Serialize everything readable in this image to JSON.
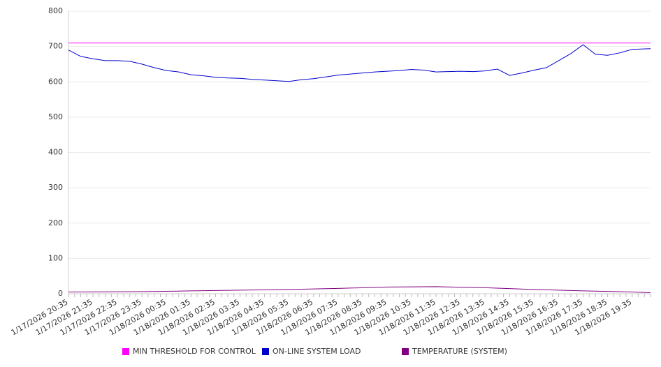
{
  "chart_data": {
    "type": "line",
    "ylim": [
      0,
      800
    ],
    "y_ticks": [
      0,
      100,
      200,
      300,
      400,
      500,
      600,
      700,
      800
    ],
    "x_tick_labels": [
      "1/17/2026 20:35",
      "1/17/2026 21:35",
      "1/17/2026 22:35",
      "1/17/2026 23:35",
      "1/18/2026 00:35",
      "1/18/2026 01:35",
      "1/18/2026 02:35",
      "1/18/2026 03:35",
      "1/18/2026 04:35",
      "1/18/2026 05:35",
      "1/18/2026 06:35",
      "1/18/2026 07:35",
      "1/18/2026 08:35",
      "1/18/2026 09:35",
      "1/18/2026 10:35",
      "1/18/2026 11:35",
      "1/18/2026 12:35",
      "1/18/2026 13:35",
      "1/18/2026 14:35",
      "1/18/2026 15:35",
      "1/18/2026 16:35",
      "1/18/2026 17:35",
      "1/18/2026 18:35",
      "1/18/2026 19:35"
    ],
    "x_start": "1/17/2026 20:35",
    "x_end": "1/18/2026 20:20",
    "legend_position": "bottom",
    "grid": true,
    "series": [
      {
        "name": "MIN THRESHOLD FOR CONTROL",
        "color": "#ff00ff",
        "x": [
          "1/17/2026 20:35",
          "1/18/2026 20:20"
        ],
        "values": [
          710,
          710
        ]
      },
      {
        "name": "ON-LINE SYSTEM LOAD",
        "color": "#0000cc",
        "x": [
          "1/17/2026 20:35",
          "1/17/2026 21:05",
          "1/17/2026 21:35",
          "1/17/2026 22:05",
          "1/17/2026 22:35",
          "1/17/2026 23:05",
          "1/17/2026 23:35",
          "1/18/2026 00:05",
          "1/18/2026 00:35",
          "1/18/2026 01:05",
          "1/18/2026 01:35",
          "1/18/2026 02:05",
          "1/18/2026 02:35",
          "1/18/2026 03:05",
          "1/18/2026 03:35",
          "1/18/2026 04:05",
          "1/18/2026 04:35",
          "1/18/2026 05:05",
          "1/18/2026 05:35",
          "1/18/2026 06:05",
          "1/18/2026 06:35",
          "1/18/2026 07:05",
          "1/18/2026 07:35",
          "1/18/2026 08:05",
          "1/18/2026 08:35",
          "1/18/2026 09:05",
          "1/18/2026 09:35",
          "1/18/2026 10:05",
          "1/18/2026 10:35",
          "1/18/2026 11:05",
          "1/18/2026 11:35",
          "1/18/2026 12:05",
          "1/18/2026 12:35",
          "1/18/2026 13:05",
          "1/18/2026 13:35",
          "1/18/2026 14:05",
          "1/18/2026 14:35",
          "1/18/2026 15:05",
          "1/18/2026 15:35",
          "1/18/2026 16:05",
          "1/18/2026 16:35",
          "1/18/2026 17:05",
          "1/18/2026 17:35",
          "1/18/2026 18:05",
          "1/18/2026 18:35",
          "1/18/2026 19:05",
          "1/18/2026 19:35",
          "1/18/2026 20:20"
        ],
        "values": [
          690,
          672,
          665,
          660,
          660,
          658,
          650,
          640,
          632,
          628,
          620,
          617,
          613,
          611,
          610,
          607,
          605,
          603,
          601,
          606,
          609,
          614,
          619,
          622,
          625,
          628,
          630,
          632,
          635,
          633,
          628,
          629,
          630,
          629,
          631,
          636,
          618,
          625,
          633,
          640,
          660,
          680,
          705,
          678,
          675,
          682,
          692,
          694
        ]
      },
      {
        "name": "TEMPERATURE (SYSTEM)",
        "color": "#800080",
        "x": [
          "1/17/2026 20:35",
          "1/17/2026 23:35",
          "1/18/2026 01:35",
          "1/18/2026 03:35",
          "1/18/2026 05:35",
          "1/18/2026 07:35",
          "1/18/2026 09:35",
          "1/18/2026 11:35",
          "1/18/2026 13:35",
          "1/18/2026 15:35",
          "1/18/2026 17:35",
          "1/18/2026 19:35",
          "1/18/2026 20:20"
        ],
        "values": [
          5,
          6,
          8,
          10,
          12,
          15,
          19,
          20,
          17,
          12,
          8,
          5,
          3
        ]
      }
    ]
  }
}
